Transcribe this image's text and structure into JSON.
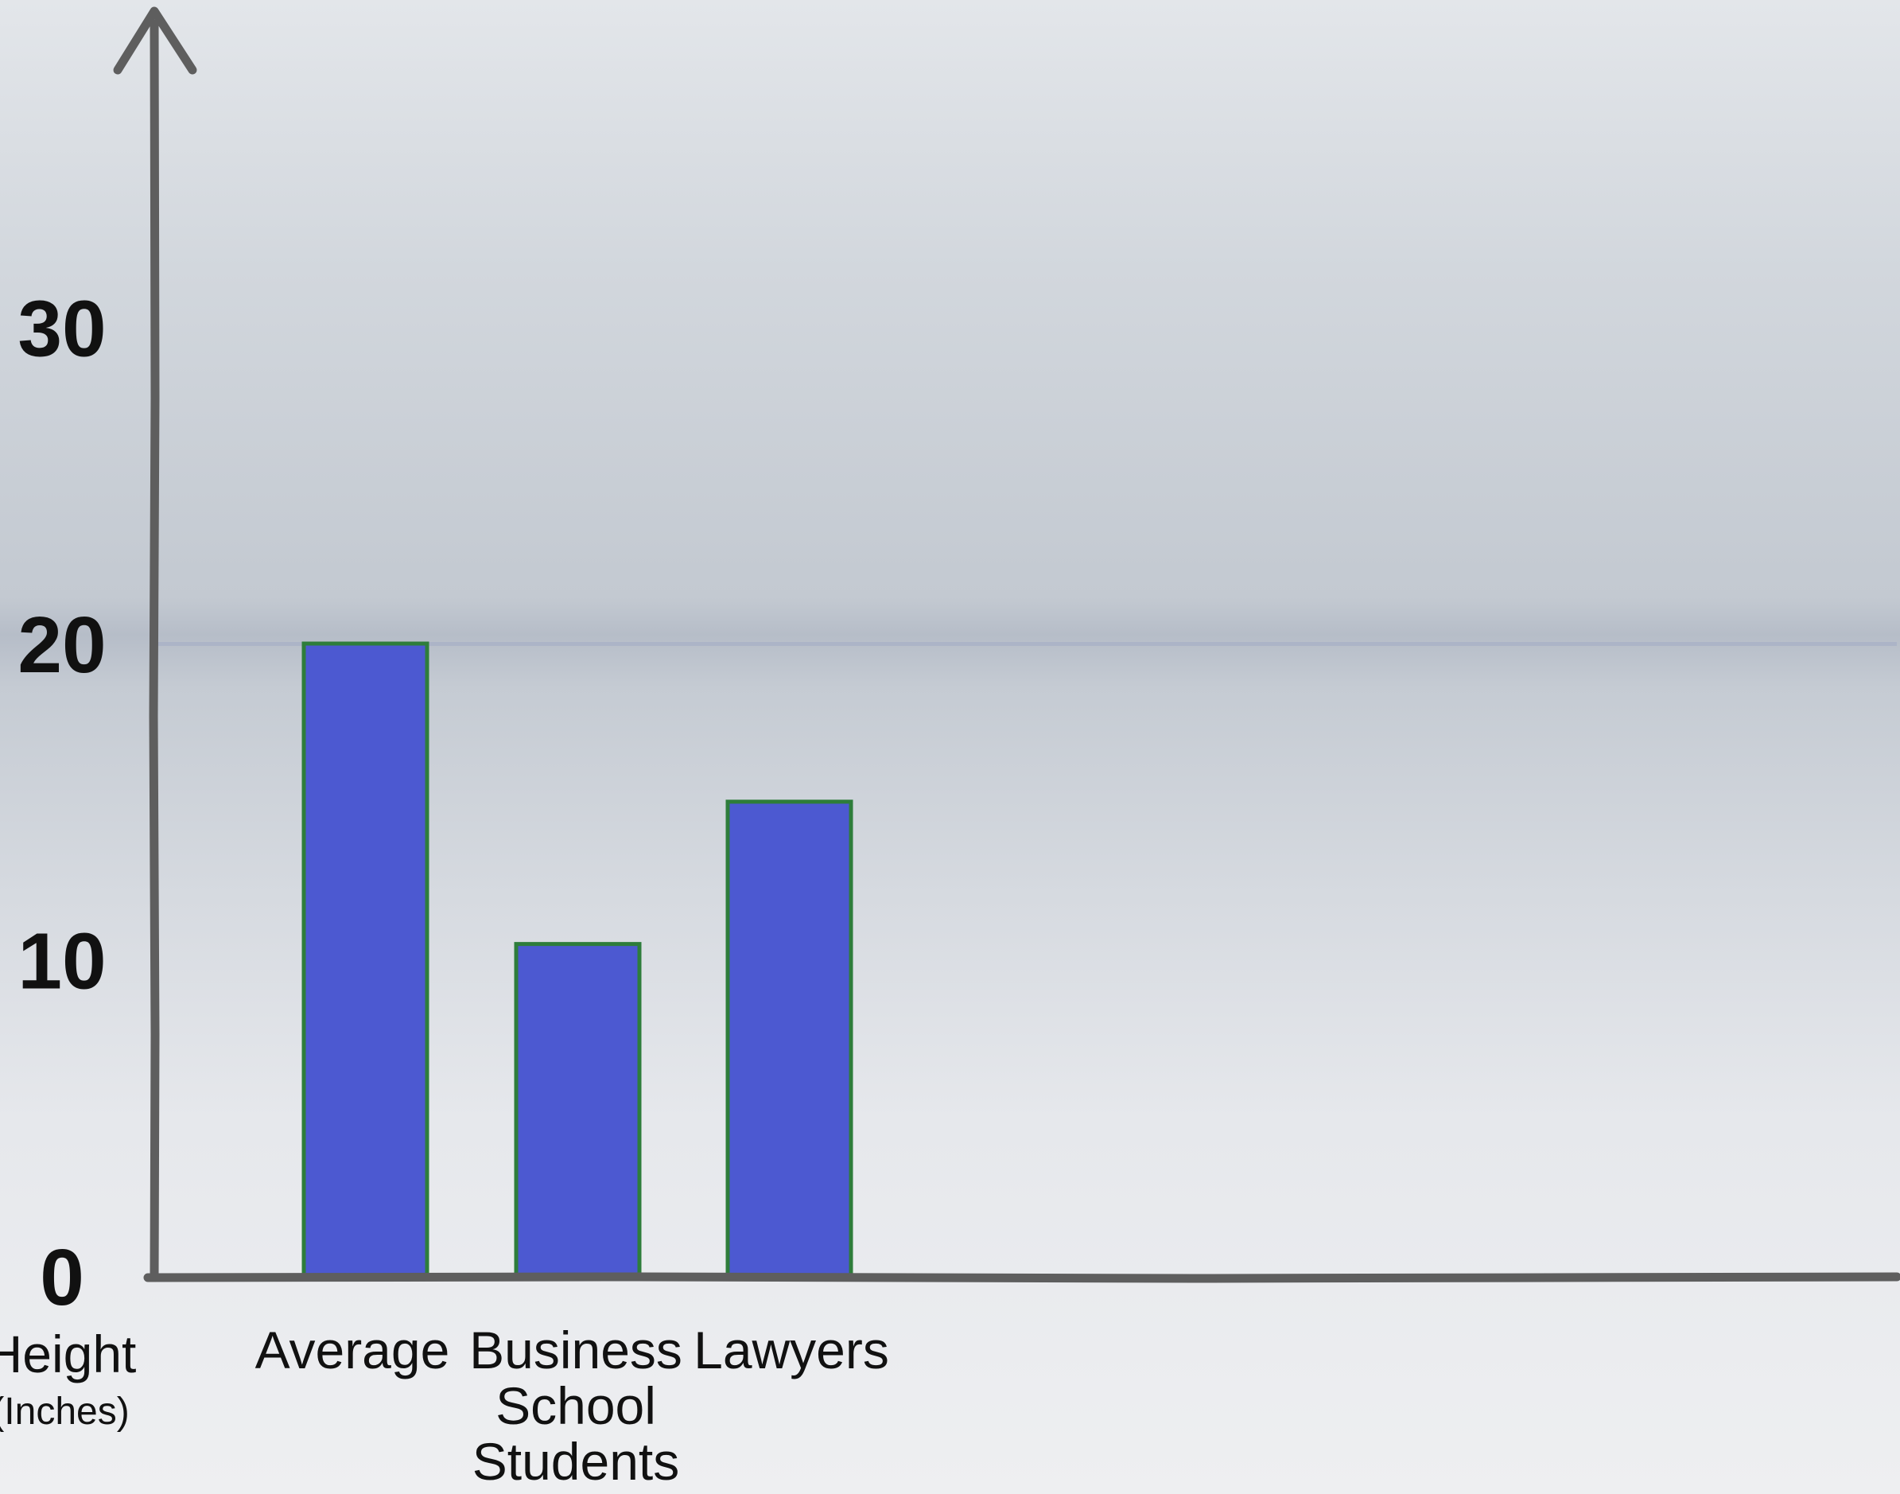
{
  "chart_data": {
    "type": "bar",
    "categories": [
      "Average",
      "Business School Students",
      "Lawyers"
    ],
    "category_lines": [
      [
        "Average"
      ],
      [
        "Business",
        "School",
        "Students"
      ],
      [
        "Lawyers"
      ]
    ],
    "values": [
      20,
      10.5,
      15
    ],
    "ylim": [
      0,
      40
    ],
    "yticks": [
      "0",
      "10",
      "20",
      "30"
    ],
    "ylabel": "Height",
    "ylabel_unit": "(Inches)",
    "reference_line": 20,
    "grid": false,
    "legend": "none",
    "colors": {
      "bar_fill": "#4c59d1",
      "bar_stroke": "#2e7d3b",
      "axis": "#5e5e5e",
      "reference_band": "#a8b0c6"
    }
  }
}
